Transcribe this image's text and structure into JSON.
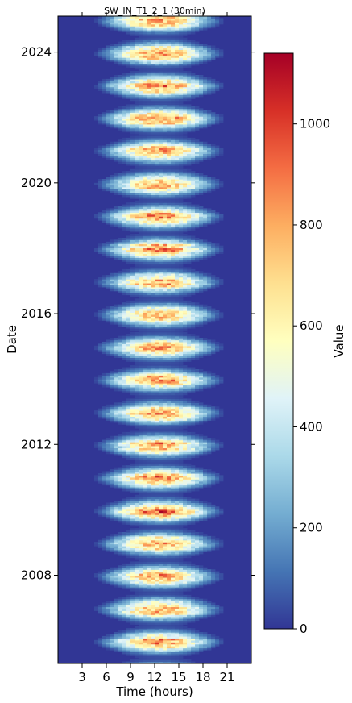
{
  "chart_data": {
    "type": "heatmap",
    "title": "SW_IN_T1_2_1 (30min)",
    "xlabel": "Time (hours)",
    "ylabel": "Date",
    "xlim": [
      0,
      24
    ],
    "x_ticks": [
      3,
      6,
      9,
      12,
      15,
      18,
      21
    ],
    "ylim": [
      2005.3,
      2025.1
    ],
    "y_ticks": [
      2008,
      2012,
      2016,
      2020,
      2024
    ],
    "colorbar": {
      "label": "Value",
      "range": [
        0,
        1140
      ],
      "ticks": [
        0,
        200,
        400,
        600,
        800,
        1000
      ],
      "colormap": [
        "#313695",
        "#4575b4",
        "#74add1",
        "#abd9e9",
        "#e0f3f8",
        "#ffffbf",
        "#fee090",
        "#fdae61",
        "#f46d43",
        "#d73027",
        "#a50026"
      ]
    },
    "annual_summer_peaks": [
      {
        "year": 2006,
        "peak": 980
      },
      {
        "year": 2007,
        "peak": 1000
      },
      {
        "year": 2008,
        "peak": 960
      },
      {
        "year": 2009,
        "peak": 1020
      },
      {
        "year": 2010,
        "peak": 980
      },
      {
        "year": 2011,
        "peak": 990
      },
      {
        "year": 2012,
        "peak": 1010
      },
      {
        "year": 2013,
        "peak": 950
      },
      {
        "year": 2014,
        "peak": 1000
      },
      {
        "year": 2015,
        "peak": 970
      },
      {
        "year": 2016,
        "peak": 1000
      },
      {
        "year": 2017,
        "peak": 980
      },
      {
        "year": 2018,
        "peak": 1040
      },
      {
        "year": 2019,
        "peak": 1000
      },
      {
        "year": 2020,
        "peak": 970
      },
      {
        "year": 2021,
        "peak": 990
      },
      {
        "year": 2022,
        "peak": 1030
      },
      {
        "year": 2023,
        "peak": 1010
      },
      {
        "year": 2024,
        "peak": 980
      }
    ]
  }
}
